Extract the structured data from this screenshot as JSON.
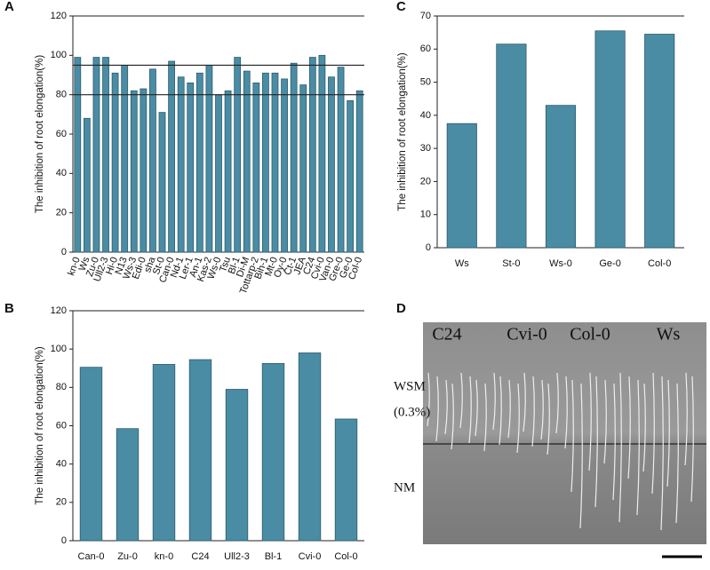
{
  "chart_data": [
    {
      "type": "bar",
      "panel": "A",
      "y_label": "The inhibition of root elongation(%)",
      "color": "#4a8ca4",
      "categories": [
        "kn-0",
        "Ws",
        "Zu-0",
        "Ull2-3",
        "Hi-0",
        "N13",
        "Ws-3",
        "Edi-0",
        "sha",
        "St-0",
        "Can-0",
        "Nd-1",
        "Ler-1",
        "An-1",
        "Kas-2",
        "Ws-0",
        "Tsu",
        "Bl-1",
        "Di-M",
        "Tottarp-2",
        "Bih-1",
        "Mt-0",
        "Oy-0",
        "Ct-1",
        "JEA",
        "C24",
        "Cvi-0",
        "Van-0",
        "Gre-0",
        "Ge-0",
        "Col-0"
      ],
      "values": [
        99,
        68,
        99,
        99,
        91,
        95,
        82,
        83,
        93,
        71,
        97,
        89,
        86,
        91,
        95,
        80,
        82,
        99,
        92,
        86,
        91,
        91,
        88,
        96,
        85,
        99,
        100,
        89,
        94,
        77,
        82
      ],
      "reference_lines": [
        95,
        80
      ],
      "ylim": [
        0,
        120
      ],
      "yticks": [
        0,
        20,
        40,
        60,
        80,
        100,
        120
      ]
    },
    {
      "type": "bar",
      "panel": "B",
      "y_label": "The inhibition of root elongation(%)",
      "color": "#4a8ca4",
      "categories": [
        "Can-0",
        "Zu-0",
        "kn-0",
        "C24",
        "Ull2-3",
        "Bl-1",
        "Cvi-0",
        "Col-0"
      ],
      "values": [
        90.5,
        58.5,
        92,
        94.5,
        79,
        92.5,
        98,
        63.5
      ],
      "ylim": [
        0,
        120
      ],
      "yticks": [
        0,
        20,
        40,
        60,
        80,
        100,
        120
      ]
    },
    {
      "type": "bar",
      "panel": "C",
      "y_label": "The inhibition of root elongation(%)",
      "color": "#4a8ca4",
      "categories": [
        "Ws",
        "St-0",
        "Ws-0",
        "Ge-0",
        "Col-0"
      ],
      "values": [
        37.5,
        61.5,
        43,
        65.5,
        64.5
      ],
      "ylim": [
        0,
        70
      ],
      "yticks": [
        0,
        10,
        20,
        30,
        40,
        50,
        60,
        70
      ]
    }
  ],
  "photo": {
    "panel": "D",
    "genotypes": [
      "C24",
      "Cvi-0",
      "Col-0",
      "Ws"
    ],
    "treatment": "WSM",
    "concentration": "(0.3%)",
    "control": "NM"
  }
}
